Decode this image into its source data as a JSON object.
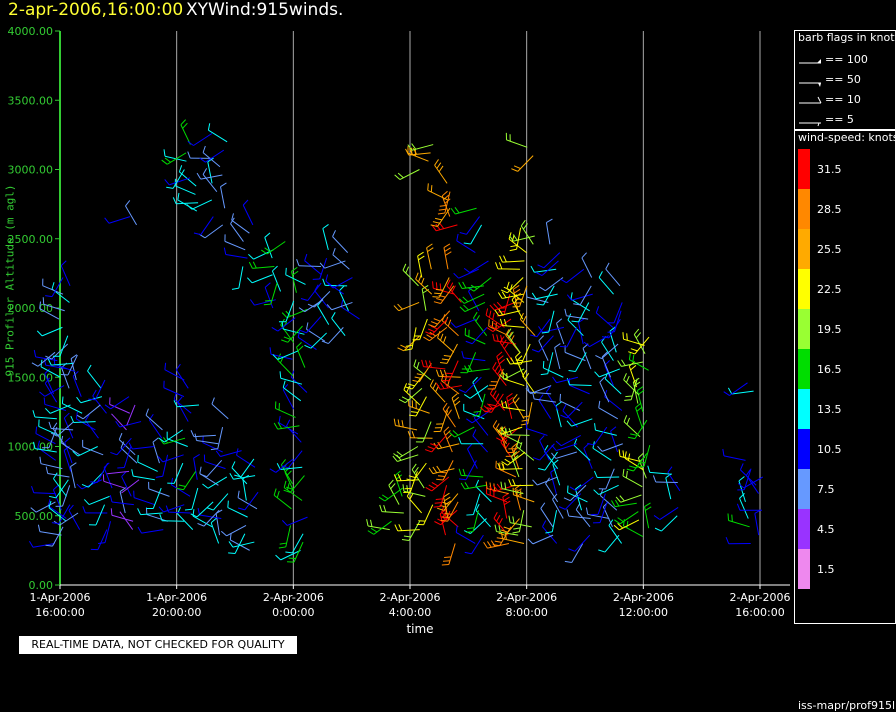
{
  "header": {
    "datetime": "2-apr-2006,16:00:00",
    "product": "XYWind:915winds."
  },
  "chart_data": {
    "type": "scatter",
    "title": "XYWind:915winds.",
    "xlabel": "time",
    "ylabel": "915 Profiler Altitude (m agl)",
    "x_ticks": [
      "1-Apr-2006 16:00:00",
      "1-Apr-2006 20:00:00",
      "2-Apr-2006 0:00:00",
      "2-Apr-2006 4:00:00",
      "2-Apr-2006 8:00:00",
      "2-Apr-2006 12:00:00",
      "2-Apr-2006 16:00:00"
    ],
    "x_tick_lines": [
      [
        "1-Apr-2006",
        "16:00:00"
      ],
      [
        "1-Apr-2006",
        "20:00:00"
      ],
      [
        "2-Apr-2006",
        "0:00:00"
      ],
      [
        "2-Apr-2006",
        "4:00:00"
      ],
      [
        "2-Apr-2006",
        "8:00:00"
      ],
      [
        "2-Apr-2006",
        "12:00:00"
      ],
      [
        "2-Apr-2006",
        "16:00:00"
      ]
    ],
    "x_range_hours": [
      0,
      24
    ],
    "y_ticks": [
      "0.00",
      "500.00",
      "1000.00",
      "1500.00",
      "2000.00",
      "2500.00",
      "3000.00",
      "3500.00",
      "4000.00"
    ],
    "ylim": [
      0,
      4000
    ],
    "grid": "vertical lines at each time tick",
    "barb_flags_legend": {
      "title": "barb flags in knots",
      "entries": [
        "== 100",
        "== 50",
        "== 10",
        "== 5"
      ]
    },
    "colorbar": {
      "title": "wind-speed: knots",
      "labels": [
        "31.5",
        "28.5",
        "25.5",
        "22.5",
        "19.5",
        "16.5",
        "13.5",
        "10.5",
        "7.5",
        "4.5",
        "1.5"
      ],
      "colors": [
        "#ff0000",
        "#ff8800",
        "#ffaa00",
        "#ffff00",
        "#99ff33",
        "#00dd00",
        "#00ffff",
        "#0000ff",
        "#6699ff",
        "#9933ff",
        "#ee88ee"
      ]
    },
    "observation_columns": [
      {
        "hour": 0.05,
        "speed": 10.5,
        "levels": [
          [
            300,
            2250
          ]
        ]
      },
      {
        "hour": 0.5,
        "speed": 10.5,
        "levels": [
          [
            400,
            1700
          ]
        ]
      },
      {
        "hour": 1.5,
        "speed": 10.5,
        "levels": [
          [
            400,
            1500
          ]
        ]
      },
      {
        "hour": 2.5,
        "speed": 7.5,
        "levels": [
          [
            400,
            1400
          ],
          [
            2600,
            2700
          ]
        ]
      },
      {
        "hour": 3.5,
        "speed": 10.5,
        "levels": [
          [
            400,
            1150
          ]
        ]
      },
      {
        "hour": 4.5,
        "speed": 13.5,
        "levels": [
          [
            400,
            1500
          ],
          [
            2700,
            3200
          ]
        ]
      },
      {
        "hour": 5.5,
        "speed": 10.5,
        "levels": [
          [
            300,
            1200
          ],
          [
            2600,
            3300
          ]
        ]
      },
      {
        "hour": 6.5,
        "speed": 10.5,
        "levels": [
          [
            250,
            1000
          ],
          [
            2300,
            2600
          ]
        ]
      },
      {
        "hour": 7.5,
        "speed": 13.5,
        "levels": [
          [
            2000,
            2500
          ]
        ]
      },
      {
        "hour": 8.2,
        "speed": 13.5,
        "levels": [
          [
            250,
            2200
          ]
        ]
      },
      {
        "hour": 9.0,
        "speed": 10.5,
        "levels": [
          [
            1700,
            2450
          ]
        ]
      },
      {
        "hour": 10.0,
        "speed": 10.5,
        "levels": [
          [
            1800,
            2400
          ]
        ]
      },
      {
        "hour": 11.5,
        "speed": 16.5,
        "levels": [
          [
            400,
            700
          ]
        ]
      },
      {
        "hour": 12.5,
        "speed": 22.5,
        "levels": [
          [
            400,
            1600
          ],
          [
            1800,
            2300
          ],
          [
            3000,
            3200
          ]
        ]
      },
      {
        "hour": 13.5,
        "speed": 28.5,
        "levels": [
          [
            300,
            2300
          ],
          [
            2600,
            2900
          ]
        ]
      },
      {
        "hour": 14.5,
        "speed": 13.5,
        "levels": [
          [
            300,
            2400
          ],
          [
            2600,
            2750
          ]
        ]
      },
      {
        "hour": 15.5,
        "speed": 31.5,
        "levels": [
          [
            300,
            2100
          ]
        ]
      },
      {
        "hour": 16.0,
        "speed": 22.5,
        "levels": [
          [
            300,
            2600
          ],
          [
            3100,
            3200
          ]
        ]
      },
      {
        "hour": 17.0,
        "speed": 10.5,
        "levels": [
          [
            300,
            2500
          ]
        ]
      },
      {
        "hour": 18.0,
        "speed": 10.5,
        "levels": [
          [
            300,
            2300
          ]
        ]
      },
      {
        "hour": 19.0,
        "speed": 10.5,
        "levels": [
          [
            300,
            2200
          ]
        ]
      },
      {
        "hour": 20.0,
        "speed": 19.5,
        "levels": [
          [
            350,
            1800
          ]
        ]
      },
      {
        "hour": 21.0,
        "speed": 10.5,
        "levels": [
          [
            500,
            800
          ]
        ]
      },
      {
        "hour": 23.8,
        "speed": 13.5,
        "levels": [
          [
            300,
            900
          ],
          [
            1400,
            1500
          ]
        ]
      }
    ]
  },
  "notice": "REAL-TIME DATA, NOT CHECKED FOR QUALITY",
  "source_label": "iss-mapr/prof915l"
}
